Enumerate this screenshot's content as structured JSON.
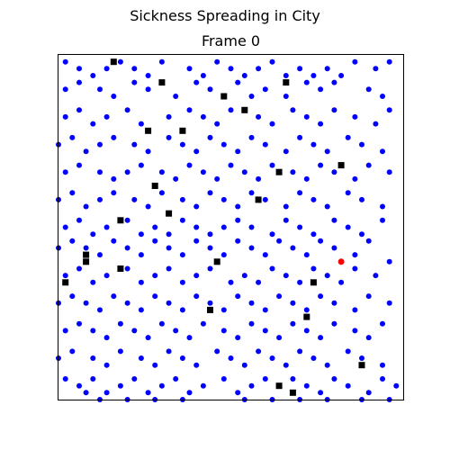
{
  "figure": {
    "suptitle": "Sickness Spreading in City",
    "title": "Frame 0"
  },
  "chart_data": {
    "type": "scatter",
    "title": "Frame 0",
    "xlabel": "",
    "ylabel": "",
    "xlim": [
      0,
      50
    ],
    "ylim": [
      0,
      50
    ],
    "ticks_visible": false,
    "grid": false,
    "colors": {
      "healthy": "#0000ff",
      "sick": "#ff0000",
      "building": "#000000"
    },
    "sick": [
      [
        41,
        20
      ]
    ],
    "buildings": [
      [
        8,
        49
      ],
      [
        15,
        46
      ],
      [
        24,
        44
      ],
      [
        27,
        42
      ],
      [
        13,
        39
      ],
      [
        18,
        39
      ],
      [
        32,
        33
      ],
      [
        14,
        31
      ],
      [
        41,
        34
      ],
      [
        29,
        29
      ],
      [
        16,
        27
      ],
      [
        9,
        26
      ],
      [
        4,
        21
      ],
      [
        4,
        20
      ],
      [
        23,
        20
      ],
      [
        9,
        19
      ],
      [
        1,
        17
      ],
      [
        37,
        17
      ],
      [
        22,
        13
      ],
      [
        36,
        12
      ],
      [
        44,
        5
      ],
      [
        32,
        2
      ],
      [
        34,
        1
      ],
      [
        33,
        46
      ]
    ],
    "healthy": [
      [
        1,
        49
      ],
      [
        3,
        48
      ],
      [
        5,
        47
      ],
      [
        7,
        48
      ],
      [
        9,
        49
      ],
      [
        11,
        48
      ],
      [
        13,
        47
      ],
      [
        15,
        49
      ],
      [
        19,
        48
      ],
      [
        21,
        47
      ],
      [
        23,
        49
      ],
      [
        25,
        48
      ],
      [
        27,
        47
      ],
      [
        29,
        48
      ],
      [
        31,
        49
      ],
      [
        33,
        47
      ],
      [
        35,
        48
      ],
      [
        37,
        47
      ],
      [
        39,
        48
      ],
      [
        41,
        47
      ],
      [
        43,
        49
      ],
      [
        46,
        48
      ],
      [
        48,
        49
      ],
      [
        1,
        45
      ],
      [
        3,
        46
      ],
      [
        6,
        45
      ],
      [
        8,
        44
      ],
      [
        11,
        46
      ],
      [
        13,
        45
      ],
      [
        17,
        44
      ],
      [
        20,
        46
      ],
      [
        22,
        45
      ],
      [
        26,
        46
      ],
      [
        28,
        44
      ],
      [
        30,
        45
      ],
      [
        33,
        44
      ],
      [
        36,
        46
      ],
      [
        38,
        45
      ],
      [
        40,
        46
      ],
      [
        45,
        45
      ],
      [
        47,
        44
      ],
      [
        1,
        41
      ],
      [
        3,
        42
      ],
      [
        5,
        40
      ],
      [
        7,
        41
      ],
      [
        10,
        42
      ],
      [
        12,
        40
      ],
      [
        16,
        41
      ],
      [
        19,
        42
      ],
      [
        21,
        41
      ],
      [
        23,
        40
      ],
      [
        25,
        42
      ],
      [
        29,
        41
      ],
      [
        31,
        40
      ],
      [
        34,
        42
      ],
      [
        36,
        41
      ],
      [
        38,
        40
      ],
      [
        40,
        42
      ],
      [
        43,
        41
      ],
      [
        46,
        40
      ],
      [
        48,
        42
      ],
      [
        0,
        37
      ],
      [
        2,
        38
      ],
      [
        4,
        36
      ],
      [
        6,
        37
      ],
      [
        8,
        38
      ],
      [
        11,
        37
      ],
      [
        13,
        36
      ],
      [
        16,
        38
      ],
      [
        18,
        37
      ],
      [
        20,
        36
      ],
      [
        22,
        38
      ],
      [
        24,
        37
      ],
      [
        26,
        36
      ],
      [
        28,
        38
      ],
      [
        30,
        37
      ],
      [
        33,
        36
      ],
      [
        35,
        38
      ],
      [
        37,
        37
      ],
      [
        39,
        36
      ],
      [
        42,
        38
      ],
      [
        44,
        37
      ],
      [
        47,
        36
      ],
      [
        1,
        33
      ],
      [
        3,
        34
      ],
      [
        6,
        33
      ],
      [
        8,
        32
      ],
      [
        10,
        33
      ],
      [
        12,
        34
      ],
      [
        15,
        33
      ],
      [
        17,
        32
      ],
      [
        19,
        34
      ],
      [
        21,
        33
      ],
      [
        23,
        32
      ],
      [
        25,
        34
      ],
      [
        27,
        33
      ],
      [
        29,
        32
      ],
      [
        31,
        34
      ],
      [
        34,
        33
      ],
      [
        36,
        32
      ],
      [
        38,
        34
      ],
      [
        40,
        33
      ],
      [
        43,
        32
      ],
      [
        45,
        34
      ],
      [
        48,
        33
      ],
      [
        0,
        29
      ],
      [
        2,
        30
      ],
      [
        4,
        28
      ],
      [
        6,
        29
      ],
      [
        8,
        30
      ],
      [
        11,
        29
      ],
      [
        13,
        28
      ],
      [
        15,
        30
      ],
      [
        18,
        29
      ],
      [
        20,
        28
      ],
      [
        22,
        30
      ],
      [
        24,
        29
      ],
      [
        26,
        28
      ],
      [
        28,
        30
      ],
      [
        30,
        29
      ],
      [
        33,
        28
      ],
      [
        35,
        30
      ],
      [
        37,
        29
      ],
      [
        39,
        28
      ],
      [
        42,
        30
      ],
      [
        44,
        29
      ],
      [
        47,
        28
      ],
      [
        1,
        25
      ],
      [
        3,
        26
      ],
      [
        5,
        24
      ],
      [
        7,
        25
      ],
      [
        10,
        26
      ],
      [
        12,
        24
      ],
      [
        14,
        25
      ],
      [
        16,
        24
      ],
      [
        18,
        26
      ],
      [
        20,
        25
      ],
      [
        22,
        24
      ],
      [
        24,
        25
      ],
      [
        26,
        26
      ],
      [
        28,
        25
      ],
      [
        31,
        24
      ],
      [
        33,
        26
      ],
      [
        35,
        25
      ],
      [
        37,
        24
      ],
      [
        40,
        26
      ],
      [
        42,
        25
      ],
      [
        44,
        24
      ],
      [
        47,
        26
      ],
      [
        0,
        22
      ],
      [
        2,
        23
      ],
      [
        4,
        22
      ],
      [
        6,
        21
      ],
      [
        8,
        23
      ],
      [
        10,
        22
      ],
      [
        12,
        21
      ],
      [
        14,
        23
      ],
      [
        16,
        22
      ],
      [
        18,
        21
      ],
      [
        20,
        23
      ],
      [
        22,
        22
      ],
      [
        24,
        21
      ],
      [
        26,
        23
      ],
      [
        28,
        22
      ],
      [
        30,
        21
      ],
      [
        32,
        23
      ],
      [
        34,
        22
      ],
      [
        36,
        21
      ],
      [
        38,
        23
      ],
      [
        40,
        22
      ],
      [
        43,
        21
      ],
      [
        45,
        23
      ],
      [
        48,
        20
      ],
      [
        1,
        18
      ],
      [
        3,
        19
      ],
      [
        5,
        17
      ],
      [
        7,
        18
      ],
      [
        10,
        19
      ],
      [
        12,
        17
      ],
      [
        14,
        18
      ],
      [
        16,
        19
      ],
      [
        18,
        17
      ],
      [
        20,
        18
      ],
      [
        22,
        19
      ],
      [
        25,
        17
      ],
      [
        27,
        18
      ],
      [
        29,
        17
      ],
      [
        31,
        19
      ],
      [
        33,
        18
      ],
      [
        35,
        17
      ],
      [
        37,
        19
      ],
      [
        39,
        18
      ],
      [
        41,
        17
      ],
      [
        43,
        19
      ],
      [
        46,
        18
      ],
      [
        0,
        14
      ],
      [
        2,
        15
      ],
      [
        4,
        14
      ],
      [
        6,
        13
      ],
      [
        8,
        15
      ],
      [
        10,
        14
      ],
      [
        12,
        13
      ],
      [
        14,
        15
      ],
      [
        16,
        14
      ],
      [
        18,
        13
      ],
      [
        20,
        15
      ],
      [
        22,
        14
      ],
      [
        24,
        13
      ],
      [
        26,
        15
      ],
      [
        28,
        14
      ],
      [
        30,
        13
      ],
      [
        32,
        15
      ],
      [
        34,
        14
      ],
      [
        36,
        13
      ],
      [
        38,
        15
      ],
      [
        40,
        14
      ],
      [
        43,
        13
      ],
      [
        45,
        15
      ],
      [
        48,
        14
      ],
      [
        1,
        10
      ],
      [
        3,
        11
      ],
      [
        5,
        10
      ],
      [
        7,
        9
      ],
      [
        9,
        11
      ],
      [
        11,
        10
      ],
      [
        13,
        9
      ],
      [
        15,
        11
      ],
      [
        17,
        10
      ],
      [
        19,
        9
      ],
      [
        21,
        11
      ],
      [
        24,
        10
      ],
      [
        26,
        9
      ],
      [
        28,
        11
      ],
      [
        30,
        10
      ],
      [
        32,
        9
      ],
      [
        34,
        11
      ],
      [
        36,
        10
      ],
      [
        38,
        9
      ],
      [
        40,
        11
      ],
      [
        43,
        10
      ],
      [
        45,
        9
      ],
      [
        47,
        11
      ],
      [
        0,
        6
      ],
      [
        2,
        7
      ],
      [
        5,
        6
      ],
      [
        7,
        5
      ],
      [
        9,
        7
      ],
      [
        12,
        6
      ],
      [
        14,
        5
      ],
      [
        16,
        7
      ],
      [
        18,
        6
      ],
      [
        20,
        5
      ],
      [
        23,
        7
      ],
      [
        25,
        6
      ],
      [
        27,
        5
      ],
      [
        29,
        7
      ],
      [
        31,
        6
      ],
      [
        33,
        5
      ],
      [
        35,
        7
      ],
      [
        37,
        6
      ],
      [
        39,
        5
      ],
      [
        42,
        7
      ],
      [
        44,
        6
      ],
      [
        47,
        5
      ],
      [
        1,
        3
      ],
      [
        3,
        2
      ],
      [
        5,
        3
      ],
      [
        7,
        1
      ],
      [
        9,
        2
      ],
      [
        11,
        3
      ],
      [
        13,
        1
      ],
      [
        15,
        2
      ],
      [
        17,
        3
      ],
      [
        19,
        1
      ],
      [
        21,
        2
      ],
      [
        24,
        3
      ],
      [
        26,
        1
      ],
      [
        28,
        2
      ],
      [
        30,
        3
      ],
      [
        34,
        3
      ],
      [
        36,
        2
      ],
      [
        38,
        1
      ],
      [
        40,
        3
      ],
      [
        42,
        2
      ],
      [
        45,
        1
      ],
      [
        47,
        3
      ],
      [
        49,
        2
      ],
      [
        4,
        1
      ],
      [
        6,
        0
      ],
      [
        10,
        0
      ],
      [
        14,
        0
      ],
      [
        18,
        0
      ],
      [
        27,
        0
      ],
      [
        31,
        0
      ],
      [
        35,
        0
      ],
      [
        39,
        0
      ],
      [
        44,
        0
      ],
      [
        48,
        0
      ]
    ]
  }
}
